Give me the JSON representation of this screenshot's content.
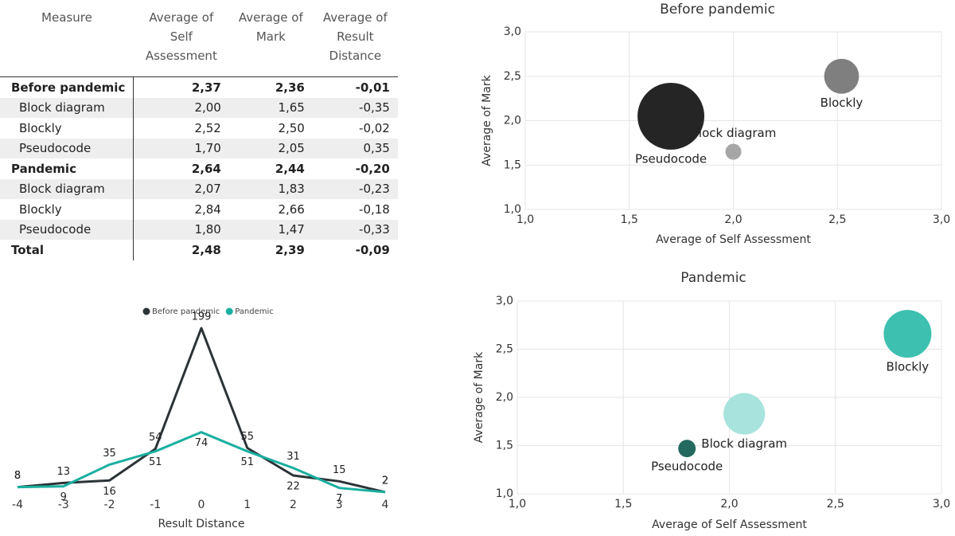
{
  "table": {
    "header": [
      "Measure",
      "Average of Self Assessment",
      "Average of Mark",
      "Average of Result Distance"
    ],
    "rows": [
      [
        "Before pandemic",
        "2,37",
        "2,36",
        "-0,01"
      ],
      [
        "Block diagram",
        "2,00",
        "1,65",
        "-0,35"
      ],
      [
        "Blockly",
        "2,52",
        "2,50",
        "-0,02"
      ],
      [
        "Pseudocode",
        "1,70",
        "2,05",
        "0,35"
      ],
      [
        "Pandemic",
        "2,64",
        "2,44",
        "-0,20"
      ],
      [
        "Block diagram",
        "2,07",
        "1,83",
        "-0,23"
      ],
      [
        "Blockly",
        "2,84",
        "2,66",
        "-0,18"
      ],
      [
        "Pseudocode",
        "1,80",
        "1,47",
        "-0,33"
      ],
      [
        "Total",
        "2,48",
        "2,39",
        "-0,09"
      ]
    ]
  },
  "chart_data": [
    {
      "type": "line",
      "xlabel": "Result Distance",
      "legend": "top",
      "x": [
        -4,
        -3,
        -2,
        -1,
        0,
        1,
        2,
        3,
        4
      ],
      "xlim": [
        -4,
        4
      ],
      "xticks": [
        -4,
        -3,
        -2,
        -1,
        0,
        1,
        2,
        3,
        4
      ],
      "series": [
        {
          "name": "Before pandemic",
          "color": "#2b3337",
          "values": [
            8,
            13,
            16,
            54,
            199,
            55,
            22,
            15,
            2
          ]
        },
        {
          "name": "Pandemic",
          "color": "#1aafa0",
          "values": [
            8,
            9,
            35,
            51,
            74,
            51,
            31,
            7,
            2
          ]
        }
      ]
    },
    {
      "type": "bubble",
      "title": "Before pandemic",
      "xlabel": "Average of Self Assessment",
      "ylabel": "Average of Mark",
      "xlim": [
        1,
        3
      ],
      "ylim": [
        1,
        3
      ],
      "grid": true,
      "xticks": [
        {
          "value": 1,
          "label": "1,0"
        },
        {
          "value": 1.5,
          "label": "1,5"
        },
        {
          "value": 2,
          "label": "2,0"
        },
        {
          "value": 2.5,
          "label": "2,5"
        },
        {
          "value": 3,
          "label": "3,0"
        }
      ],
      "yticks": [
        {
          "value": 1,
          "label": "1,0"
        },
        {
          "value": 1.5,
          "label": "1,5"
        },
        {
          "value": 2,
          "label": "2,0"
        },
        {
          "value": 2.5,
          "label": "2,5"
        },
        {
          "value": 3,
          "label": "3,0"
        }
      ],
      "labels": [
        "Block diagram",
        "Blockly",
        "Pseudocode"
      ],
      "x": [
        2.0,
        2.52,
        1.7
      ],
      "values": [
        1.65,
        2.5,
        2.05
      ],
      "sizes": [
        10,
        48,
        176
      ],
      "colors": [
        "#a6a6a6",
        "#7f7f7f",
        "#252525"
      ]
    },
    {
      "type": "bubble",
      "title": "Pandemic",
      "xlabel": "Average of Self Assessment",
      "ylabel": "Average of Mark",
      "xlim": [
        1,
        3
      ],
      "ylim": [
        1,
        3
      ],
      "grid": true,
      "xticks": [
        {
          "value": 1,
          "label": "1,0"
        },
        {
          "value": 1.5,
          "label": "1,5"
        },
        {
          "value": 2,
          "label": "2,0"
        },
        {
          "value": 2.5,
          "label": "2,5"
        },
        {
          "value": 3,
          "label": "3,0"
        }
      ],
      "yticks": [
        {
          "value": 1,
          "label": "1,0"
        },
        {
          "value": 1.5,
          "label": "1,5"
        },
        {
          "value": 2,
          "label": "2,0"
        },
        {
          "value": 2.5,
          "label": "2,5"
        },
        {
          "value": 3,
          "label": "3,0"
        }
      ],
      "labels": [
        "Block diagram",
        "Blockly",
        "Pseudocode"
      ],
      "x": [
        2.07,
        2.84,
        1.8
      ],
      "values": [
        1.83,
        2.66,
        1.47
      ],
      "sizes": [
        68,
        90,
        12
      ],
      "colors": [
        "#a8e3de",
        "#3dc0b0",
        "#23695f"
      ]
    }
  ]
}
